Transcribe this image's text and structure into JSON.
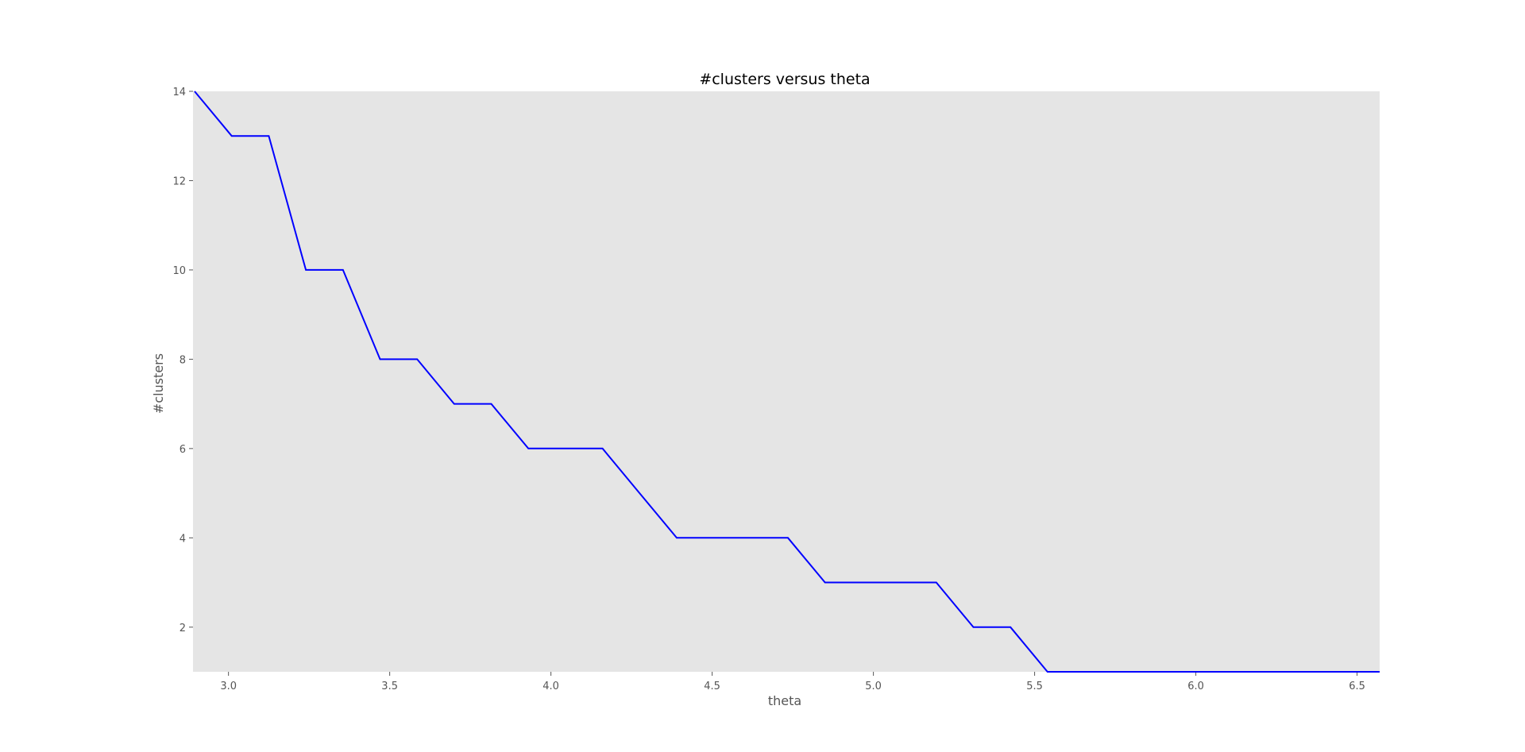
{
  "chart_data": {
    "type": "line",
    "title": "#clusters versus theta",
    "xlabel": "theta",
    "ylabel": "#clusters",
    "xlim": [
      2.89,
      6.57
    ],
    "ylim": [
      1,
      14
    ],
    "x_ticks": [
      3.0,
      3.5,
      4.0,
      4.5,
      5.0,
      5.5,
      6.0,
      6.5
    ],
    "x_tick_labels": [
      "3.0",
      "3.5",
      "4.0",
      "4.5",
      "5.0",
      "5.5",
      "6.0",
      "6.5"
    ],
    "y_ticks": [
      2,
      4,
      6,
      8,
      10,
      12,
      14
    ],
    "y_tick_labels": [
      "2",
      "4",
      "6",
      "8",
      "10",
      "12",
      "14"
    ],
    "grid": false,
    "background_color": "#e5e5e5",
    "series": [
      {
        "color": "#0000ff",
        "x": [
          2.895,
          3.01,
          3.125,
          3.24,
          3.355,
          3.47,
          3.585,
          3.7,
          3.815,
          3.93,
          4.045,
          4.16,
          4.275,
          4.39,
          4.505,
          4.62,
          4.735,
          4.85,
          4.965,
          5.08,
          5.195,
          5.31,
          5.425,
          5.54,
          5.655,
          5.77,
          5.885,
          6.0,
          6.115,
          6.23,
          6.345,
          6.46,
          6.57
        ],
        "y": [
          14,
          13,
          13,
          10,
          10,
          8,
          8,
          7,
          7,
          6,
          6,
          6,
          5,
          4,
          4,
          4,
          4,
          3,
          3,
          3,
          3,
          2,
          2,
          1,
          1,
          1,
          1,
          1,
          1,
          1,
          1,
          1,
          1
        ]
      }
    ]
  }
}
